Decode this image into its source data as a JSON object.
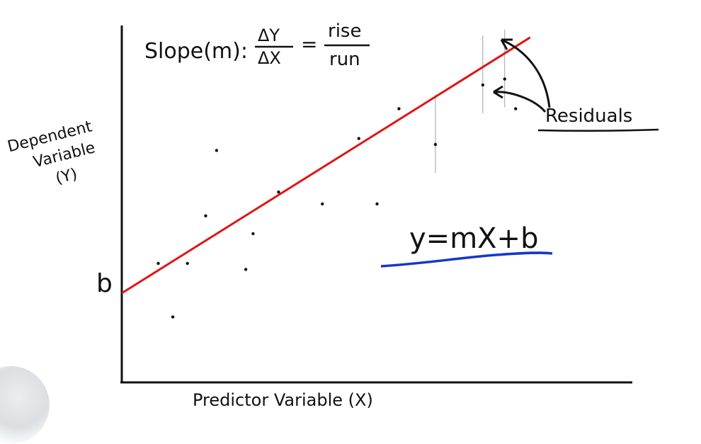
{
  "formula": {
    "slope_label": "Slope(m):",
    "delta_y": "ΔY",
    "delta_x": "ΔX",
    "equals": "=",
    "rise": "rise",
    "run": "run"
  },
  "y_axis_label": [
    "Dependent",
    "Variable",
    "(Y)"
  ],
  "x_axis_label": "Predictor Variable (X)",
  "intercept_label": "b",
  "residuals_label": "Residuals",
  "equation": "y=mX+b",
  "colors": {
    "regression_line": "#e01515",
    "equation_underline": "#1437c8",
    "ink": "#111111"
  },
  "chart_data": {
    "type": "scatter",
    "x": [
      1.0,
      1.4,
      1.8,
      2.3,
      2.6,
      3.4,
      3.6,
      4.3,
      5.5,
      6.5,
      7.0,
      7.6,
      8.6,
      9.9,
      10.5,
      10.8
    ],
    "y": [
      2.0,
      1.1,
      2.0,
      2.8,
      3.9,
      1.9,
      2.5,
      3.2,
      3.0,
      4.1,
      3.0,
      4.6,
      4.0,
      5.0,
      5.1,
      4.6
    ],
    "regression_line": {
      "x": [
        0,
        11.2
      ],
      "y": [
        1.5,
        5.8
      ]
    },
    "residual_points": [
      8.6,
      9.9,
      10.5
    ],
    "xlim": [
      0,
      14
    ],
    "ylim": [
      0,
      6
    ]
  }
}
